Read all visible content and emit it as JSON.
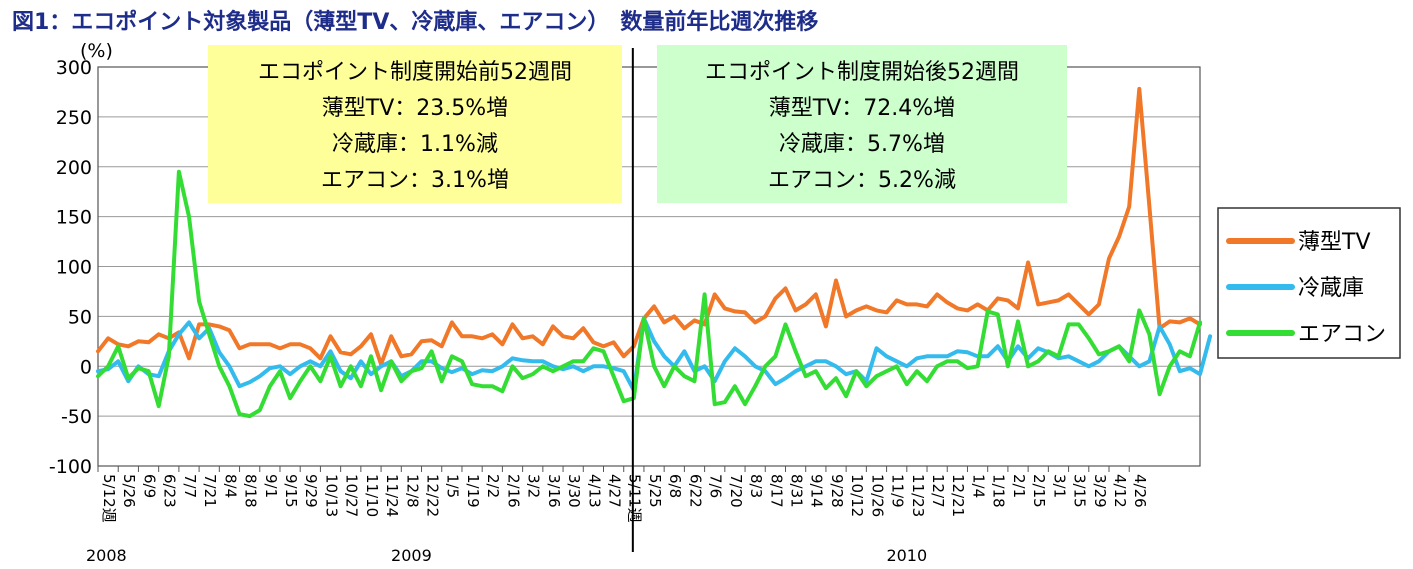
{
  "chart_data": {
    "type": "line",
    "title": "図1：エコポイント対象製品（薄型TV、冷蔵庫、エアコン）　数量前年比週次推移",
    "ylabel": "(%)",
    "ylim": [
      -100,
      300
    ],
    "yticks": [
      "300",
      "250",
      "200",
      "150",
      "100",
      "50",
      "0",
      "-50",
      "-100"
    ],
    "grid": true,
    "legend_position": "right",
    "xtick_labels": [
      "5/12週",
      "5/26",
      "6/9",
      "6/23",
      "7/7",
      "7/21",
      "8/4",
      "8/18",
      "9/1",
      "9/15",
      "9/29",
      "10/13",
      "10/27",
      "11/10",
      "11/24",
      "12/8",
      "12/22",
      "1/5",
      "1/19",
      "2/2",
      "2/16",
      "3/2",
      "3/16",
      "3/30",
      "4/13",
      "4/27",
      "5/11週",
      "5/25",
      "6/8",
      "6/22",
      "7/6",
      "7/20",
      "8/3",
      "8/17",
      "8/31",
      "9/14",
      "9/28",
      "10/12",
      "10/26",
      "11/9",
      "11/23",
      "12/7",
      "12/21",
      "1/4",
      "1/18",
      "2/1",
      "2/15",
      "3/1",
      "3/15",
      "3/29",
      "4/12",
      "4/26"
    ],
    "year_labels": [
      "2008",
      "2009",
      "2010"
    ],
    "divider_week": 53,
    "annotations": [
      {
        "lines": [
          "エコポイント制度開始前52週間",
          "薄型TV：23.5%増",
          "冷蔵庫：1.1%減",
          "エアコン：3.1%増"
        ],
        "color": "#ffff99"
      },
      {
        "lines": [
          "エコポイント制度開始後52週間",
          "薄型TV：72.4%増",
          "冷蔵庫：5.7%増",
          "エアコン：5.2%減"
        ],
        "color": "#ccffcc"
      }
    ],
    "series": [
      {
        "name": "薄型TV",
        "color": "#f07828",
        "values": [
          15,
          28,
          22,
          20,
          25,
          24,
          32,
          28,
          34,
          8,
          42,
          42,
          40,
          36,
          18,
          22,
          22,
          22,
          18,
          22,
          22,
          18,
          8,
          30,
          14,
          12,
          20,
          32,
          2,
          30,
          10,
          12,
          25,
          26,
          20,
          44,
          30,
          30,
          28,
          32,
          22,
          42,
          28,
          30,
          22,
          40,
          30,
          28,
          38,
          24,
          20,
          24,
          10,
          20,
          48,
          60,
          44,
          50,
          38,
          46,
          42,
          72,
          58,
          55,
          54,
          44,
          50,
          68,
          78,
          56,
          62,
          72,
          40,
          86,
          50,
          56,
          60,
          56,
          54,
          66,
          62,
          62,
          60,
          72,
          64,
          58,
          56,
          62,
          56,
          68,
          66,
          58,
          104,
          62,
          64,
          66,
          72,
          62,
          52,
          62,
          108,
          130,
          160,
          278,
          160,
          38,
          45,
          44,
          48,
          42
        ]
      },
      {
        "name": "冷蔵庫",
        "color": "#33bbee",
        "values": [
          -5,
          -3,
          5,
          -15,
          0,
          -8,
          -10,
          15,
          32,
          44,
          28,
          38,
          14,
          0,
          -20,
          -16,
          -10,
          -2,
          0,
          -8,
          0,
          5,
          0,
          15,
          -5,
          -12,
          5,
          -8,
          0,
          5,
          -10,
          -5,
          5,
          5,
          -2,
          -6,
          -2,
          -8,
          -4,
          -5,
          0,
          8,
          6,
          5,
          5,
          0,
          -3,
          0,
          -5,
          0,
          0,
          -2,
          -5,
          -24,
          48,
          25,
          10,
          0,
          15,
          -5,
          0,
          -15,
          5,
          18,
          10,
          0,
          -5,
          -18,
          -12,
          -5,
          0,
          5,
          5,
          0,
          -8,
          -5,
          -15,
          18,
          10,
          5,
          0,
          8,
          10,
          10,
          10,
          15,
          14,
          10,
          10,
          20,
          5,
          20,
          8,
          18,
          14,
          8,
          10,
          5,
          0,
          5,
          15,
          20,
          10,
          0,
          5,
          40,
          22,
          -5,
          -2,
          -8,
          30
        ]
      },
      {
        "name": "エアコン",
        "color": "#33dd33",
        "values": [
          -10,
          0,
          20,
          -12,
          -2,
          -5,
          -40,
          10,
          195,
          150,
          65,
          32,
          0,
          -20,
          -48,
          -50,
          -44,
          -20,
          -5,
          -32,
          -15,
          0,
          -15,
          10,
          -20,
          0,
          -20,
          10,
          -24,
          5,
          -15,
          -5,
          -2,
          15,
          -15,
          10,
          5,
          -18,
          -20,
          -20,
          -25,
          0,
          -12,
          -8,
          0,
          -5,
          0,
          5,
          5,
          18,
          15,
          -10,
          -35,
          -32,
          48,
          0,
          -20,
          0,
          -10,
          -15,
          72,
          -38,
          -36,
          -20,
          -38,
          -20,
          0,
          10,
          42,
          15,
          -10,
          -5,
          -22,
          -12,
          -30,
          -5,
          -20,
          -10,
          -5,
          0,
          -18,
          -5,
          -15,
          0,
          5,
          5,
          -2,
          0,
          55,
          52,
          0,
          45,
          0,
          5,
          15,
          10,
          42,
          42,
          28,
          12,
          15,
          20,
          5,
          56,
          32,
          -28,
          0,
          15,
          10,
          44
        ]
      }
    ]
  }
}
